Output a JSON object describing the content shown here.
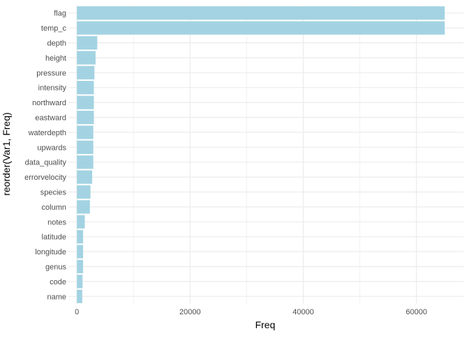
{
  "chart_data": {
    "type": "bar",
    "orientation": "horizontal",
    "title": "",
    "xlabel": "Freq",
    "ylabel": "reorder(Var1, Freq)",
    "categories": [
      "flag",
      "temp_c",
      "depth",
      "height",
      "pressure",
      "intensity",
      "northward",
      "eastward",
      "waterdepth",
      "upwards",
      "data_quality",
      "errorvelocity",
      "species",
      "column",
      "notes",
      "latitude",
      "longitude",
      "genus",
      "code",
      "name"
    ],
    "values": [
      65000,
      65000,
      3600,
      3300,
      3100,
      3000,
      3000,
      3000,
      2900,
      2900,
      2900,
      2700,
      2400,
      2300,
      1400,
      1100,
      1100,
      1100,
      1000,
      950
    ],
    "xlim": [
      -1500,
      68300
    ],
    "x_ticks": [
      0,
      20000,
      40000,
      60000
    ],
    "x_tick_labels": [
      "0",
      "20000",
      "40000",
      "60000"
    ],
    "bar_color": "#a3d3e2",
    "grid": true,
    "grid_color": "#ebebeb",
    "legend": "none",
    "theme": "minimal"
  }
}
